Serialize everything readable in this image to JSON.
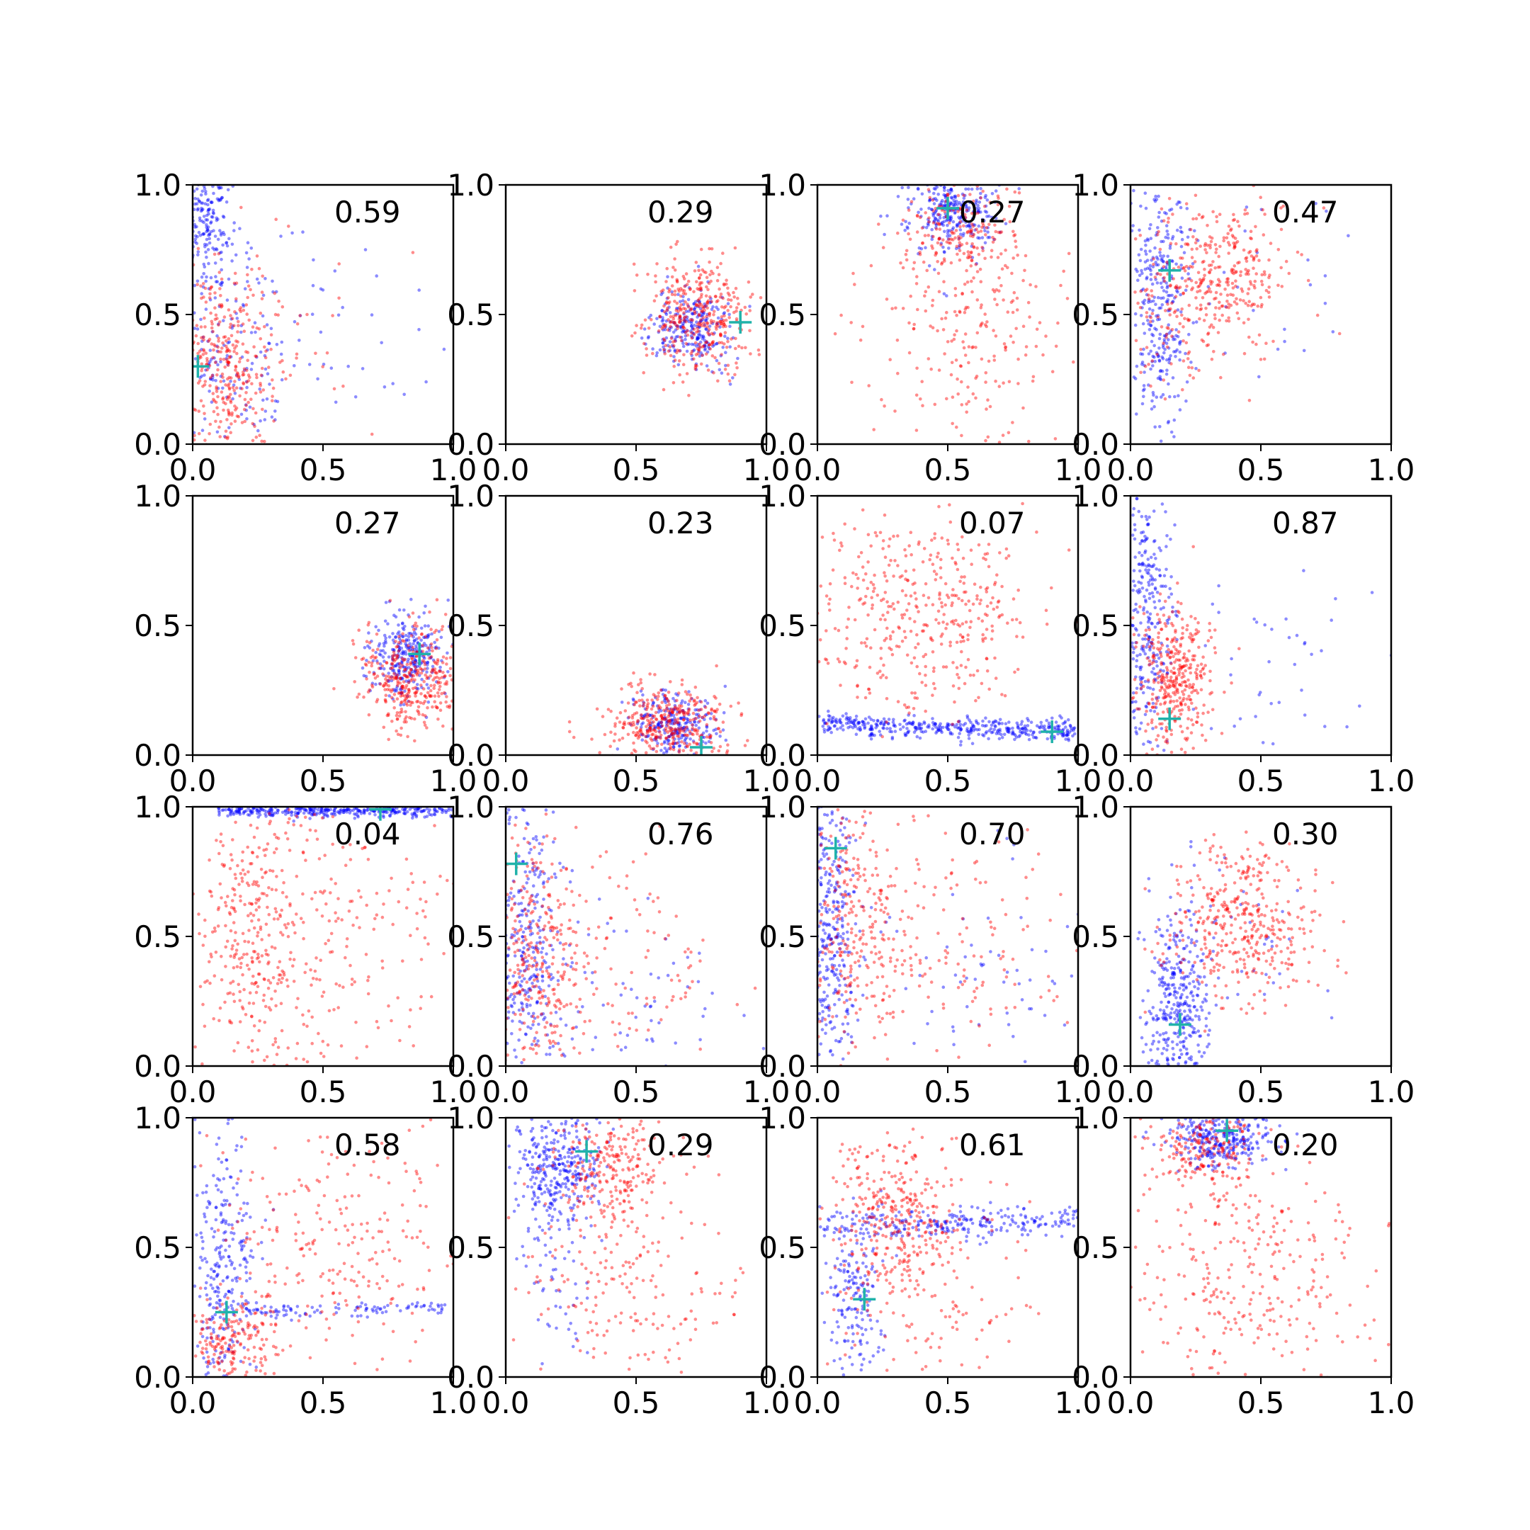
{
  "chart_data": {
    "type": "scatter",
    "layout": "4x4 grid of small scatter panels",
    "x_ticks": [
      "0.0",
      "0.5",
      "1.0"
    ],
    "y_ticks": [
      "0.0",
      "0.5",
      "1.0"
    ],
    "xlim": [
      0,
      1
    ],
    "ylim": [
      0,
      1
    ],
    "series_colors": {
      "blue": "#0000ff",
      "red": "#ff0000",
      "marker": "#20b2aa"
    },
    "panels": [
      {
        "label": "0.59",
        "marker": [
          0.02,
          0.3
        ],
        "blue": [
          {
            "x": 0.05,
            "y": 0.85,
            "sx": 0.05,
            "sy": 0.12,
            "n": 200
          },
          {
            "x": 0.12,
            "y": 0.35,
            "sx": 0.1,
            "sy": 0.22,
            "n": 160
          },
          {
            "x": 0.45,
            "y": 0.4,
            "sx": 0.25,
            "sy": 0.22,
            "n": 60
          }
        ],
        "red": [
          {
            "x": 0.12,
            "y": 0.28,
            "sx": 0.09,
            "sy": 0.2,
            "n": 350
          },
          {
            "x": 0.35,
            "y": 0.4,
            "sx": 0.2,
            "sy": 0.2,
            "n": 40
          }
        ]
      },
      {
        "label": "0.29",
        "marker": [
          0.9,
          0.47
        ],
        "blue": [
          {
            "x": 0.72,
            "y": 0.46,
            "sx": 0.07,
            "sy": 0.08,
            "n": 260
          }
        ],
        "red": [
          {
            "x": 0.73,
            "y": 0.5,
            "sx": 0.1,
            "sy": 0.12,
            "n": 380
          }
        ]
      },
      {
        "label": "0.27",
        "marker": [
          0.5,
          0.91
        ],
        "blue": [
          {
            "x": 0.52,
            "y": 0.9,
            "sx": 0.09,
            "sy": 0.08,
            "n": 300
          }
        ],
        "red": [
          {
            "x": 0.55,
            "y": 0.83,
            "sx": 0.1,
            "sy": 0.12,
            "n": 220
          },
          {
            "x": 0.58,
            "y": 0.4,
            "sx": 0.2,
            "sy": 0.2,
            "n": 200
          }
        ]
      },
      {
        "label": "0.47",
        "marker": [
          0.15,
          0.67
        ],
        "blue": [
          {
            "x": 0.12,
            "y": 0.55,
            "sx": 0.06,
            "sy": 0.25,
            "n": 320
          },
          {
            "x": 0.45,
            "y": 0.6,
            "sx": 0.25,
            "sy": 0.2,
            "n": 30
          }
        ],
        "red": [
          {
            "x": 0.33,
            "y": 0.67,
            "sx": 0.14,
            "sy": 0.13,
            "n": 320
          },
          {
            "x": 0.2,
            "y": 0.45,
            "sx": 0.1,
            "sy": 0.15,
            "n": 80
          }
        ]
      },
      {
        "label": "0.27",
        "marker": [
          0.87,
          0.39
        ],
        "blue": [
          {
            "x": 0.82,
            "y": 0.37,
            "sx": 0.07,
            "sy": 0.08,
            "n": 300
          }
        ],
        "red": [
          {
            "x": 0.85,
            "y": 0.3,
            "sx": 0.1,
            "sy": 0.1,
            "n": 380
          }
        ]
      },
      {
        "label": "0.23",
        "marker": [
          0.75,
          0.03
        ],
        "blue": [
          {
            "x": 0.65,
            "y": 0.12,
            "sx": 0.08,
            "sy": 0.06,
            "n": 260
          }
        ],
        "red": [
          {
            "x": 0.62,
            "y": 0.12,
            "sx": 0.12,
            "sy": 0.08,
            "n": 380
          }
        ]
      },
      {
        "label": "0.07",
        "marker": [
          0.9,
          0.09
        ],
        "blue": [
          {
            "line": true,
            "x0": 0.02,
            "y0": 0.12,
            "x1": 1.0,
            "y1": 0.09,
            "s": 0.02,
            "n": 420
          }
        ],
        "red": [
          {
            "x": 0.4,
            "y": 0.55,
            "sx": 0.22,
            "sy": 0.2,
            "n": 420
          }
        ]
      },
      {
        "label": "0.87",
        "marker": [
          0.15,
          0.14
        ],
        "blue": [
          {
            "x": 0.06,
            "y": 0.55,
            "sx": 0.05,
            "sy": 0.3,
            "n": 300
          },
          {
            "x": 0.5,
            "y": 0.35,
            "sx": 0.25,
            "sy": 0.2,
            "n": 50
          }
        ],
        "red": [
          {
            "x": 0.17,
            "y": 0.3,
            "sx": 0.08,
            "sy": 0.14,
            "n": 380
          }
        ]
      },
      {
        "label": "0.04",
        "marker": [
          0.72,
          0.99
        ],
        "blue": [
          {
            "line": true,
            "x0": 0.1,
            "y0": 0.985,
            "x1": 1.0,
            "y1": 0.985,
            "s": 0.012,
            "n": 380
          }
        ],
        "red": [
          {
            "x": 0.22,
            "y": 0.5,
            "sx": 0.1,
            "sy": 0.28,
            "n": 300
          },
          {
            "x": 0.55,
            "y": 0.45,
            "sx": 0.25,
            "sy": 0.28,
            "n": 220
          }
        ]
      },
      {
        "label": "0.76",
        "marker": [
          0.04,
          0.78
        ],
        "blue": [
          {
            "x": 0.06,
            "y": 0.45,
            "sx": 0.07,
            "sy": 0.28,
            "n": 340
          },
          {
            "x": 0.45,
            "y": 0.25,
            "sx": 0.25,
            "sy": 0.18,
            "n": 80
          }
        ],
        "red": [
          {
            "x": 0.12,
            "y": 0.4,
            "sx": 0.1,
            "sy": 0.24,
            "n": 320
          },
          {
            "x": 0.45,
            "y": 0.45,
            "sx": 0.25,
            "sy": 0.2,
            "n": 100
          }
        ]
      },
      {
        "label": "0.70",
        "marker": [
          0.07,
          0.84
        ],
        "blue": [
          {
            "x": 0.05,
            "y": 0.5,
            "sx": 0.05,
            "sy": 0.3,
            "n": 360
          },
          {
            "x": 0.55,
            "y": 0.35,
            "sx": 0.25,
            "sy": 0.22,
            "n": 70
          }
        ],
        "red": [
          {
            "x": 0.15,
            "y": 0.55,
            "sx": 0.12,
            "sy": 0.25,
            "n": 300
          },
          {
            "x": 0.55,
            "y": 0.45,
            "sx": 0.25,
            "sy": 0.22,
            "n": 120
          }
        ]
      },
      {
        "label": "0.30",
        "marker": [
          0.19,
          0.16
        ],
        "blue": [
          {
            "x": 0.18,
            "y": 0.25,
            "sx": 0.06,
            "sy": 0.18,
            "n": 360
          },
          {
            "x": 0.4,
            "y": 0.45,
            "sx": 0.15,
            "sy": 0.2,
            "n": 40
          }
        ],
        "red": [
          {
            "x": 0.42,
            "y": 0.55,
            "sx": 0.15,
            "sy": 0.15,
            "n": 400
          }
        ]
      },
      {
        "label": "0.58",
        "marker": [
          0.13,
          0.25
        ],
        "blue": [
          {
            "x": 0.12,
            "y": 0.4,
            "sx": 0.06,
            "sy": 0.28,
            "n": 300
          },
          {
            "line": true,
            "x0": 0.2,
            "y0": 0.25,
            "x1": 1.0,
            "y1": 0.27,
            "s": 0.015,
            "n": 100
          }
        ],
        "red": [
          {
            "x": 0.15,
            "y": 0.15,
            "sx": 0.1,
            "sy": 0.1,
            "n": 200
          },
          {
            "x": 0.55,
            "y": 0.55,
            "sx": 0.25,
            "sy": 0.25,
            "n": 250
          }
        ]
      },
      {
        "label": "0.29",
        "marker": [
          0.31,
          0.87
        ],
        "blue": [
          {
            "x": 0.2,
            "y": 0.82,
            "sx": 0.08,
            "sy": 0.12,
            "n": 340
          },
          {
            "x": 0.2,
            "y": 0.45,
            "sx": 0.08,
            "sy": 0.2,
            "n": 60
          }
        ],
        "red": [
          {
            "x": 0.4,
            "y": 0.82,
            "sx": 0.12,
            "sy": 0.12,
            "n": 240
          },
          {
            "x": 0.45,
            "y": 0.35,
            "sx": 0.22,
            "sy": 0.22,
            "n": 200
          }
        ]
      },
      {
        "label": "0.61",
        "marker": [
          0.18,
          0.3
        ],
        "blue": [
          {
            "line": true,
            "x0": 0.02,
            "y0": 0.58,
            "x1": 1.0,
            "y1": 0.6,
            "s": 0.03,
            "n": 260
          },
          {
            "x": 0.15,
            "y": 0.3,
            "sx": 0.05,
            "sy": 0.15,
            "n": 160
          }
        ],
        "red": [
          {
            "x": 0.3,
            "y": 0.62,
            "sx": 0.12,
            "sy": 0.15,
            "n": 300
          },
          {
            "x": 0.4,
            "y": 0.4,
            "sx": 0.2,
            "sy": 0.2,
            "n": 140
          }
        ]
      },
      {
        "label": "0.20",
        "marker": [
          0.37,
          0.95
        ],
        "blue": [
          {
            "x": 0.35,
            "y": 0.92,
            "sx": 0.1,
            "sy": 0.06,
            "n": 320
          }
        ],
        "red": [
          {
            "x": 0.28,
            "y": 0.88,
            "sx": 0.1,
            "sy": 0.08,
            "n": 180
          },
          {
            "x": 0.45,
            "y": 0.4,
            "sx": 0.25,
            "sy": 0.25,
            "n": 320
          }
        ]
      }
    ]
  }
}
